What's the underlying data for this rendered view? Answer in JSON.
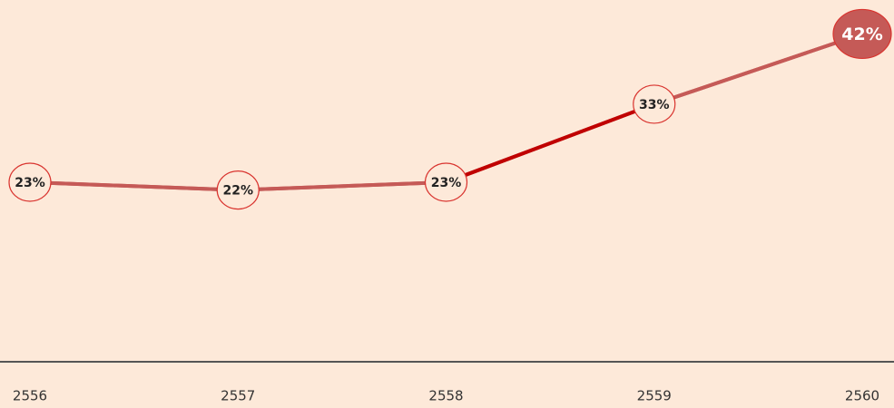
{
  "chart_data": {
    "type": "line",
    "categories": [
      "2556",
      "2557",
      "2558",
      "2559",
      "2560"
    ],
    "values": [
      23,
      22,
      23,
      33,
      42
    ],
    "value_labels": [
      "23%",
      "22%",
      "23%",
      "33%",
      "42%"
    ],
    "color": "#c55a57",
    "segment_colors": [
      "#c55a57",
      "#c55a57",
      "#c00000",
      "#c55a57"
    ],
    "ylim": [
      0,
      46
    ]
  }
}
